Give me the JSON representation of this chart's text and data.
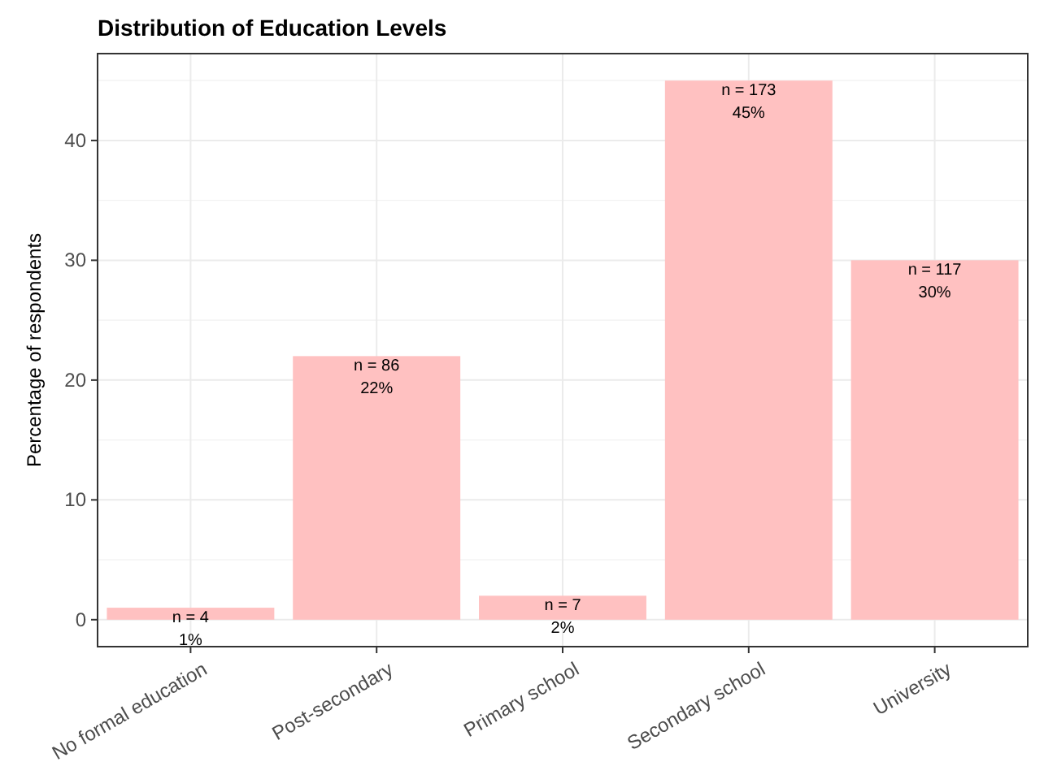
{
  "chart_data": {
    "type": "bar",
    "title": "Distribution of Education Levels",
    "ylabel": "Percentage of respondents",
    "categories": [
      "No formal education",
      "Post-secondary",
      "Primary school",
      "Secondary school",
      "University"
    ],
    "values": [
      1,
      22,
      2,
      45,
      30
    ],
    "value_labels": [
      "n = 4\n1%",
      "n = 86\n22%",
      "n = 7\n2%",
      "n = 173\n45%",
      "n = 117\n30%"
    ],
    "color": "#ffc1c1",
    "ylim": [
      -2.25,
      47.25
    ],
    "yticks": [
      0,
      10,
      20,
      30,
      40
    ],
    "grid": true
  }
}
